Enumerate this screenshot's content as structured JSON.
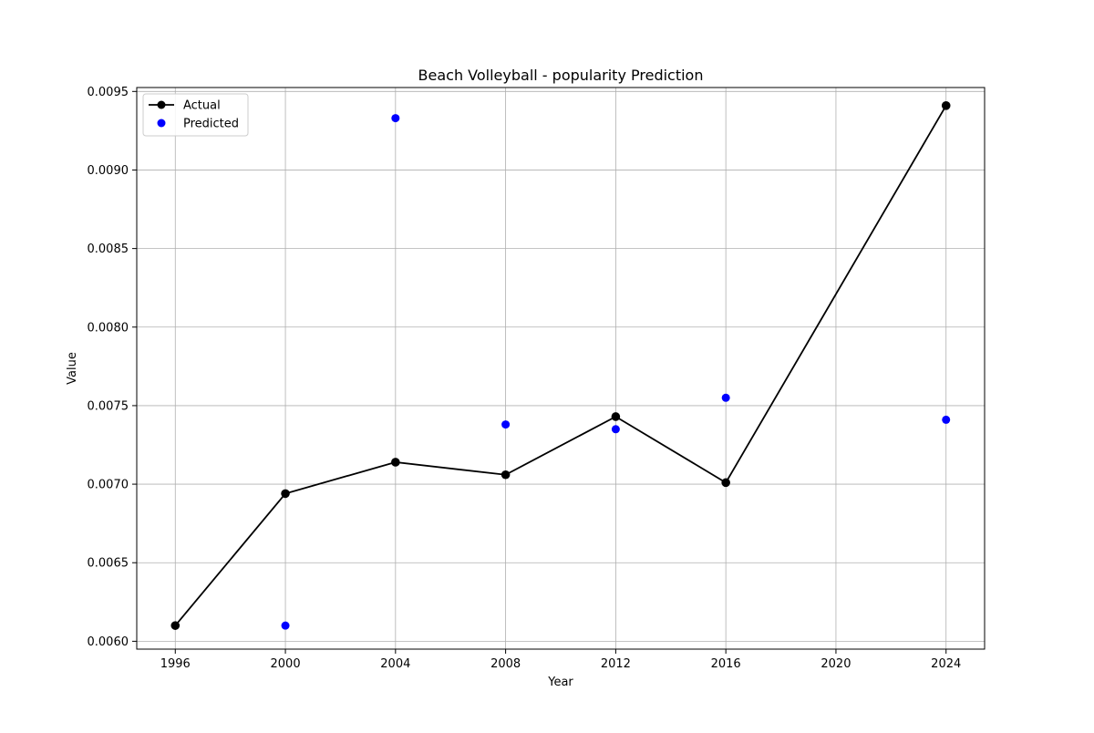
{
  "chart_data": {
    "type": "line",
    "title": "Beach Volleyball - popularity Prediction",
    "xlabel": "Year",
    "ylabel": "Value",
    "xlim": [
      1994.6,
      2025.4
    ],
    "ylim": [
      0.00595,
      0.009525
    ],
    "x_ticks": [
      1996,
      2000,
      2004,
      2008,
      2012,
      2016,
      2020,
      2024
    ],
    "y_ticks": [
      0.006,
      0.0065,
      0.007,
      0.0075,
      0.008,
      0.0085,
      0.009,
      0.0095
    ],
    "x_tick_labels": [
      "1996",
      "2000",
      "2004",
      "2008",
      "2012",
      "2016",
      "2020",
      "2024"
    ],
    "y_tick_labels": [
      "0.0060",
      "0.0065",
      "0.0070",
      "0.0075",
      "0.0080",
      "0.0085",
      "0.0090",
      "0.0095"
    ],
    "grid": true,
    "legend_position": "upper-left",
    "series": [
      {
        "name": "Actual",
        "kind": "line-marker",
        "color": "#000000",
        "x": [
          1996,
          2000,
          2004,
          2008,
          2012,
          2016,
          2024
        ],
        "y": [
          0.0061,
          0.00694,
          0.00714,
          0.00706,
          0.00743,
          0.00701,
          0.00941
        ]
      },
      {
        "name": "Predicted",
        "kind": "scatter",
        "color": "#0000ff",
        "x": [
          2000,
          2004,
          2008,
          2012,
          2016,
          2024
        ],
        "y": [
          0.0061,
          0.00933,
          0.00738,
          0.00735,
          0.00755,
          0.00741
        ]
      }
    ]
  }
}
